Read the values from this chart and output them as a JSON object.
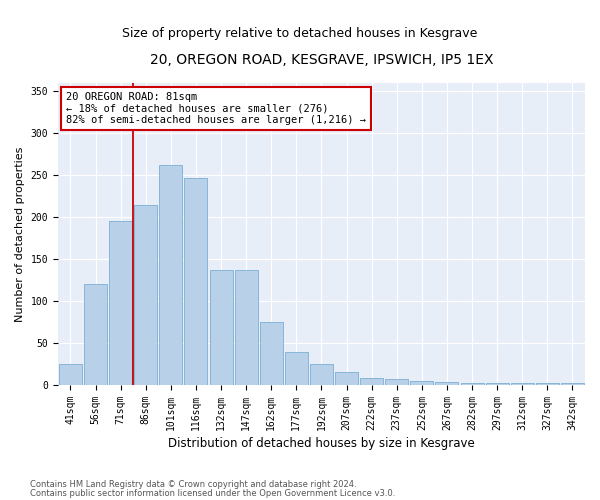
{
  "title": "20, OREGON ROAD, KESGRAVE, IPSWICH, IP5 1EX",
  "subtitle": "Size of property relative to detached houses in Kesgrave",
  "xlabel": "Distribution of detached houses by size in Kesgrave",
  "ylabel": "Number of detached properties",
  "categories": [
    "41sqm",
    "56sqm",
    "71sqm",
    "86sqm",
    "101sqm",
    "116sqm",
    "132sqm",
    "147sqm",
    "162sqm",
    "177sqm",
    "192sqm",
    "207sqm",
    "222sqm",
    "237sqm",
    "252sqm",
    "267sqm",
    "282sqm",
    "297sqm",
    "312sqm",
    "327sqm",
    "342sqm"
  ],
  "bar_heights": [
    25,
    120,
    195,
    215,
    262,
    247,
    137,
    137,
    75,
    40,
    25,
    15,
    8,
    7,
    5,
    4,
    3,
    2,
    2,
    2,
    2
  ],
  "bar_color": "#b8d0e8",
  "bar_edge_color": "#7aafd4",
  "vline_index": 3,
  "vline_color": "#cc0000",
  "annotation_text": "20 OREGON ROAD: 81sqm\n← 18% of detached houses are smaller (276)\n82% of semi-detached houses are larger (1,216) →",
  "annotation_box_color": "#ffffff",
  "annotation_border_color": "#cc0000",
  "ylim": [
    0,
    360
  ],
  "yticks": [
    0,
    50,
    100,
    150,
    200,
    250,
    300,
    350
  ],
  "background_color": "#e8eef8",
  "footer_line1": "Contains HM Land Registry data © Crown copyright and database right 2024.",
  "footer_line2": "Contains public sector information licensed under the Open Government Licence v3.0.",
  "title_fontsize": 10,
  "subtitle_fontsize": 9,
  "xlabel_fontsize": 8.5,
  "ylabel_fontsize": 8,
  "tick_fontsize": 7,
  "annotation_fontsize": 7.5,
  "footer_fontsize": 6
}
